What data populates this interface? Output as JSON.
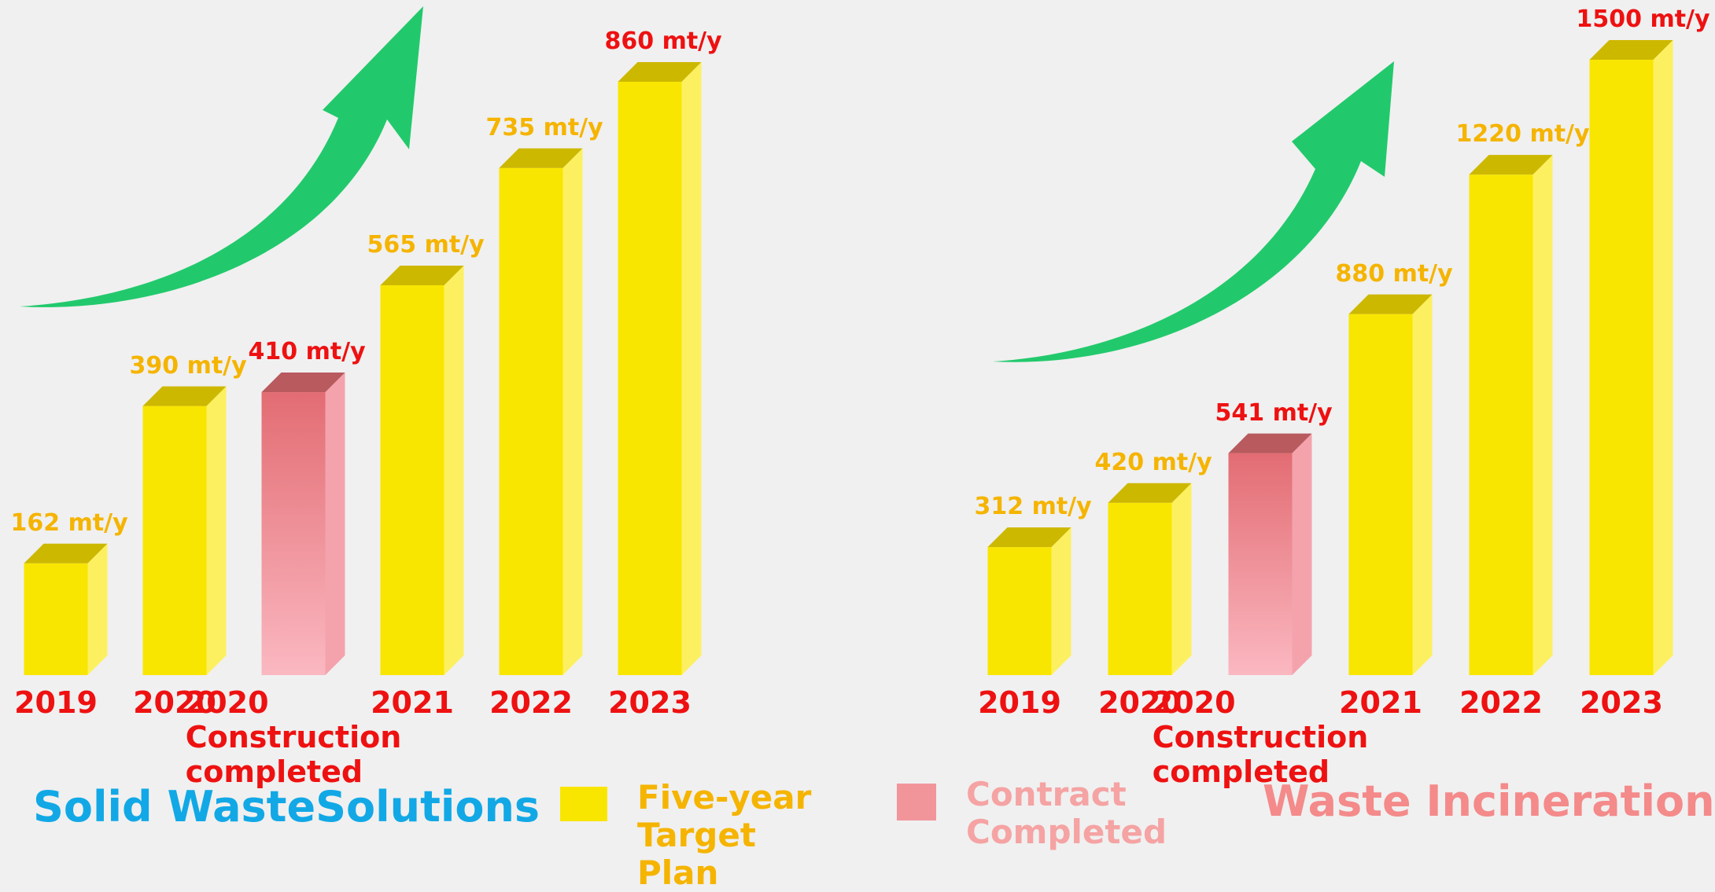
{
  "chart_data": [
    {
      "type": "bar",
      "title": "Solid WasteSolutions",
      "title_color": "#12a8e6",
      "categories": [
        "2019",
        "2020",
        "2020 Construction completed",
        "2021",
        "2022",
        "2023"
      ],
      "values": [
        162,
        390,
        410,
        565,
        735,
        860
      ],
      "value_labels": [
        "162 mt/y",
        "390 mt/y",
        "410 mt/y",
        "565 mt/y",
        "735 mt/y",
        "860 mt/y"
      ],
      "colors": [
        "#f9e600",
        "#f9e600",
        "#f1959b",
        "#f9e600",
        "#f9e600",
        "#f9e600"
      ],
      "value_label_colors": [
        "#f5b400",
        "#f5b400",
        "#ee1111",
        "#f5b400",
        "#f5b400",
        "#ee1111"
      ],
      "category_color": "#ee1111"
    },
    {
      "type": "bar",
      "title": "Waste Incineration",
      "title_color": "#f48a8a",
      "categories": [
        "2019",
        "2020",
        "2020 Construction completed",
        "2021",
        "2022",
        "2023"
      ],
      "values": [
        312,
        420,
        541,
        880,
        1220,
        1500
      ],
      "value_labels": [
        "312 mt/y",
        "420 mt/y",
        "541 mt/y",
        "880 mt/y",
        "1220 mt/y",
        "1500 mt/y"
      ],
      "colors": [
        "#f9e600",
        "#f9e600",
        "#f1959b",
        "#f9e600",
        "#f9e600",
        "#f9e600"
      ],
      "value_label_colors": [
        "#f5b400",
        "#f5b400",
        "#ee1111",
        "#f5b400",
        "#f5b400",
        "#ee1111"
      ],
      "category_color": "#ee1111"
    }
  ],
  "legend": [
    {
      "name": "Five-year Target Plan",
      "color": "#f9e600",
      "text_color": "#f5b400"
    },
    {
      "name": "Contract Completed",
      "color": "#f1959b",
      "text_color": "#f5a3a3"
    }
  ]
}
